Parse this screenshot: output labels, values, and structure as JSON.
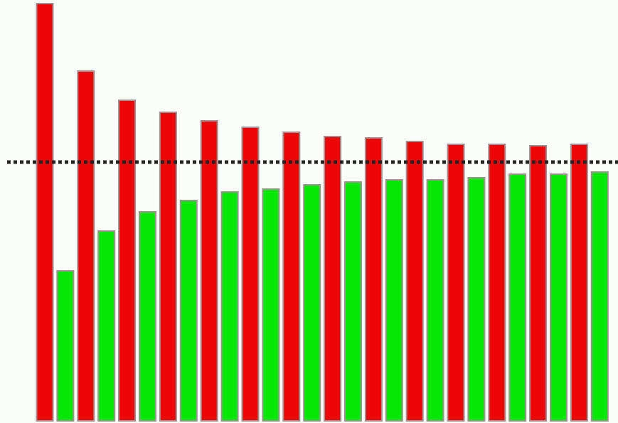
{
  "chart_data": {
    "type": "bar",
    "series": [
      {
        "color": "#ee0505",
        "values": [
          587,
          492,
          451,
          434,
          422,
          413,
          406,
          400,
          398,
          393,
          389,
          389,
          387,
          389
        ]
      },
      {
        "color": "#05e805",
        "values": [
          211,
          267,
          294,
          310,
          322,
          326,
          332,
          336,
          339,
          339,
          342,
          347,
          347,
          350
        ]
      }
    ],
    "ylim": [
      0,
      592
    ],
    "reference_line": 364
  }
}
